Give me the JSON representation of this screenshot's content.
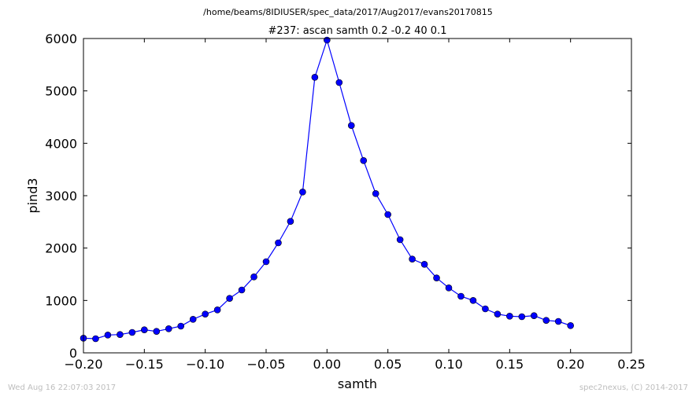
{
  "path": "/home/beams/8IDIUSER/spec_data/2017/Aug2017/evans20170815",
  "footer_left": "Wed Aug 16 22:07:03 2017",
  "footer_right": "spec2nexus, (C) 2014-2017",
  "chart_data": {
    "type": "line",
    "title": "#237: ascan  samth 0.2 -0.2  40 0.1",
    "xlabel": "samth",
    "ylabel": "pind3",
    "xlim": [
      -0.2,
      0.25
    ],
    "ylim": [
      0,
      6000
    ],
    "xticks": [
      -0.2,
      -0.15,
      -0.1,
      -0.05,
      0.0,
      0.05,
      0.1,
      0.15,
      0.2,
      0.25
    ],
    "xtick_labels": [
      "−0.20",
      "−0.15",
      "−0.10",
      "−0.05",
      "0.00",
      "0.05",
      "0.10",
      "0.15",
      "0.20",
      "0.25"
    ],
    "yticks": [
      0,
      1000,
      2000,
      3000,
      4000,
      5000,
      6000
    ],
    "ytick_labels": [
      "0",
      "1000",
      "2000",
      "3000",
      "4000",
      "5000",
      "6000"
    ],
    "grid": false,
    "line_color": "#0000ff",
    "marker_color": "#0000ff",
    "series": [
      {
        "x": [
          -0.2,
          -0.19,
          -0.18,
          -0.17,
          -0.16,
          -0.15,
          -0.14,
          -0.13,
          -0.12,
          -0.11,
          -0.1,
          -0.09,
          -0.08,
          -0.07,
          -0.06,
          -0.05,
          -0.04,
          -0.03,
          -0.02,
          -0.01,
          0.0,
          0.01,
          0.02,
          0.03,
          0.04,
          0.05,
          0.06,
          0.07,
          0.08,
          0.09,
          0.1,
          0.11,
          0.12,
          0.13,
          0.14,
          0.15,
          0.16,
          0.17,
          0.18,
          0.19,
          0.2
        ],
        "y": [
          280,
          270,
          340,
          350,
          390,
          440,
          410,
          460,
          510,
          640,
          740,
          820,
          1040,
          1200,
          1450,
          1740,
          2100,
          2510,
          3070,
          5260,
          5970,
          5160,
          4340,
          3670,
          3040,
          2640,
          2160,
          1790,
          1690,
          1430,
          1240,
          1080,
          1000,
          840,
          740,
          700,
          690,
          710,
          620,
          600,
          520
        ]
      }
    ]
  }
}
